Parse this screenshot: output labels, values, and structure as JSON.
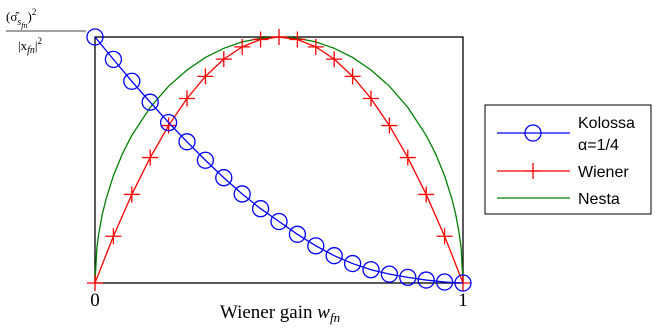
{
  "chart_data": {
    "type": "line",
    "title": "",
    "ylabel": {
      "numerator": "(σ̂_{s_{fn}})^2",
      "numerator_main": "(σ̂",
      "numerator_sub": "s",
      "numerator_subsub": "fn",
      "numerator_tail": ")",
      "numerator_sup": "2",
      "denominator": "|x_{fn}|^2",
      "denominator_main": "|x",
      "denominator_sub": "fn",
      "denominator_tail": "|",
      "denominator_sup": "2"
    },
    "xlabel": "Wiener gain w_{fn}",
    "xlabel_text": "Wiener gain ",
    "xlabel_var": "w",
    "xlabel_sub": "fn",
    "xticks": [
      "0",
      "1"
    ],
    "xlim": [
      0,
      1
    ],
    "ylim": [
      0,
      1
    ],
    "grid": false,
    "legend_position": "right",
    "series": [
      {
        "name": "Kolossa α=1/4",
        "name_line1": "Kolossa",
        "name_line2": "α=1/4",
        "color": "#0000ff",
        "marker": "circle",
        "x": [
          0,
          0.05,
          0.1,
          0.15,
          0.2,
          0.25,
          0.3,
          0.35,
          0.4,
          0.45,
          0.5,
          0.55,
          0.6,
          0.65,
          0.7,
          0.75,
          0.8,
          0.85,
          0.9,
          0.95,
          1
        ],
        "y": [
          1,
          0.909,
          0.82,
          0.735,
          0.652,
          0.574,
          0.499,
          0.428,
          0.362,
          0.302,
          0.25,
          0.198,
          0.151,
          0.111,
          0.079,
          0.054,
          0.036,
          0.023,
          0.012,
          0.004,
          0
        ]
      },
      {
        "name": "Wiener",
        "color": "#ff0000",
        "marker": "plus",
        "x": [
          0,
          0.05,
          0.1,
          0.15,
          0.2,
          0.25,
          0.3,
          0.35,
          0.4,
          0.45,
          0.5,
          0.55,
          0.6,
          0.65,
          0.7,
          0.75,
          0.8,
          0.85,
          0.9,
          0.95,
          1
        ],
        "y": [
          0,
          0.19,
          0.36,
          0.51,
          0.64,
          0.75,
          0.84,
          0.91,
          0.96,
          0.99,
          1,
          0.99,
          0.96,
          0.91,
          0.84,
          0.75,
          0.64,
          0.51,
          0.36,
          0.19,
          0
        ]
      },
      {
        "name": "Nesta",
        "color": "#008000",
        "marker": "none",
        "x": [
          0,
          0.005,
          0.01,
          0.02,
          0.03,
          0.05,
          0.075,
          0.1,
          0.15,
          0.2,
          0.25,
          0.3,
          0.35,
          0.4,
          0.45,
          0.5,
          0.55,
          0.6,
          0.65,
          0.7,
          0.75,
          0.8,
          0.85,
          0.9,
          0.925,
          0.95,
          0.97,
          0.98,
          0.99,
          0.995,
          1
        ],
        "y": [
          0,
          0.141,
          0.199,
          0.28,
          0.341,
          0.436,
          0.527,
          0.6,
          0.714,
          0.8,
          0.866,
          0.917,
          0.954,
          0.98,
          0.995,
          1,
          0.995,
          0.98,
          0.954,
          0.917,
          0.866,
          0.8,
          0.714,
          0.6,
          0.527,
          0.436,
          0.341,
          0.28,
          0.199,
          0.141,
          0
        ]
      }
    ]
  }
}
